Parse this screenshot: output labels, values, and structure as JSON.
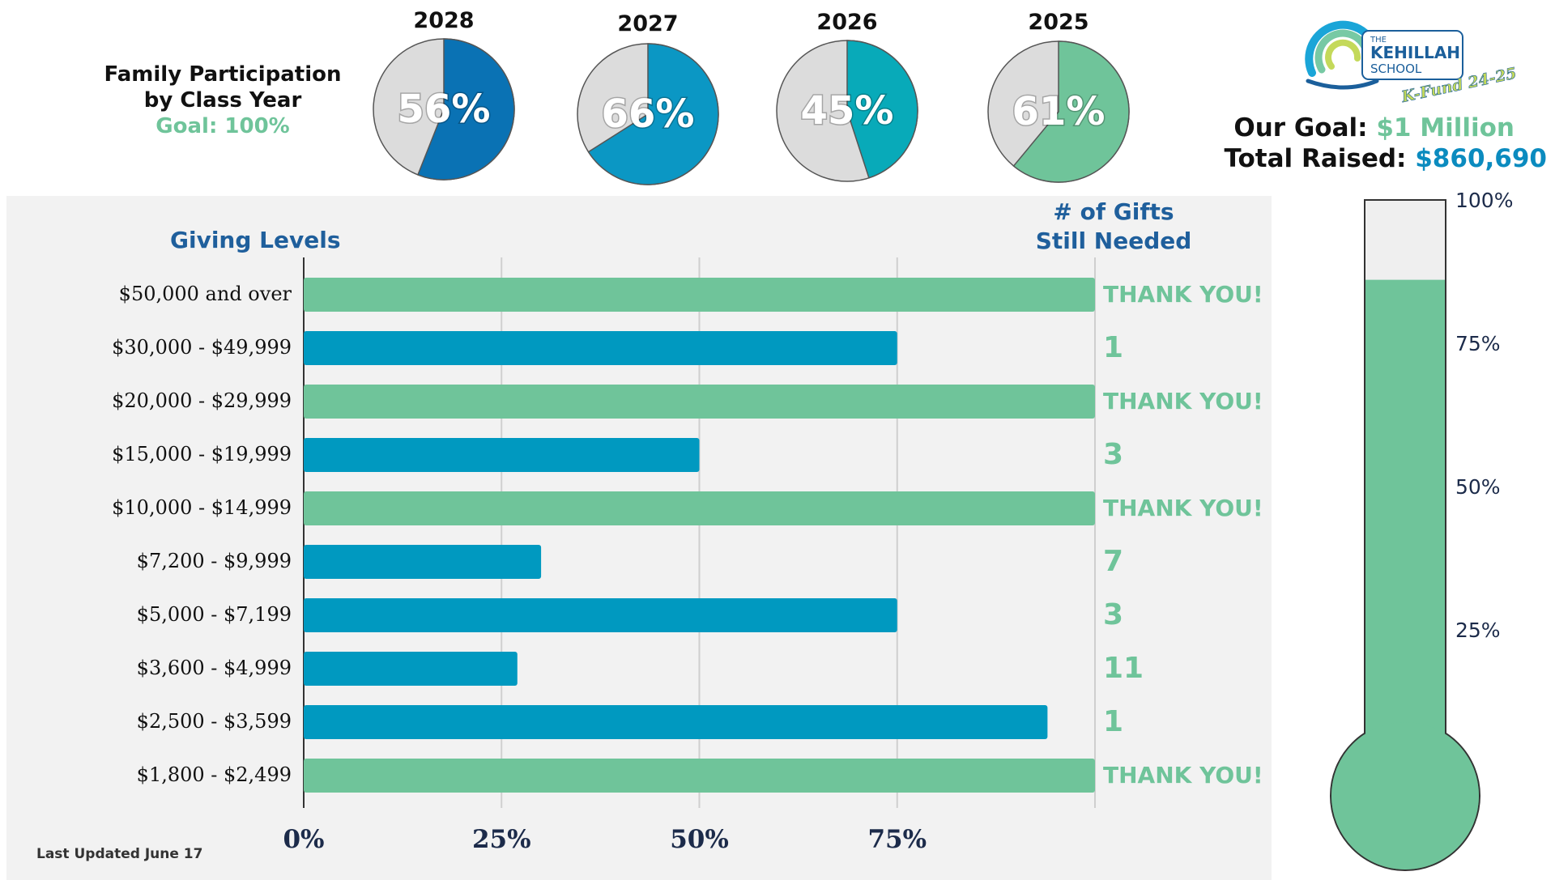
{
  "header": {
    "family_title_line1": "Family Participation",
    "family_title_line2": "by Class Year",
    "family_goal": "Goal: 100%"
  },
  "pies": [
    {
      "year": "2028",
      "percent": 56,
      "label": "56%",
      "color": "#0a72b4"
    },
    {
      "year": "2027",
      "percent": 66,
      "label": "66%",
      "color": "#0b97c4"
    },
    {
      "year": "2026",
      "percent": 45,
      "label": "45%",
      "color": "#08aab9"
    },
    {
      "year": "2025",
      "percent": 61,
      "label": "61%",
      "color": "#6fc49a"
    }
  ],
  "logo": {
    "the": "THE",
    "name": "KEHILLAH",
    "school": "SCHOOL",
    "tagline": "K-Fund 24-25"
  },
  "goal": {
    "goal_label": "Our Goal:",
    "goal_value": "$1 Million",
    "raised_label": "Total Raised:",
    "raised_value": "$860,690"
  },
  "giving": {
    "title": "Giving Levels",
    "gifts_title_line1": "# of Gifts",
    "gifts_title_line2": "Still Needed",
    "updated": "Last Updated June 17"
  },
  "chart_data": [
    {
      "type": "bar",
      "orientation": "horizontal",
      "title": "",
      "xlabel": "",
      "ylabel": "Giving Levels",
      "xlim": [
        0,
        100
      ],
      "x_ticks": [
        "0%",
        "25%",
        "50%",
        "75%"
      ],
      "categories": [
        "$50,000 and over",
        "$30,000 - $49,999",
        "$20,000 - $29,999",
        "$15,000 - $19,999",
        "$10,000 - $14,999",
        "$7,200 - $9,999",
        "$5,000 - $7,199",
        "$3,600 - $4,999",
        "$2,500 - $3,599",
        "$1,800 - $2,499"
      ],
      "values": [
        100,
        75,
        100,
        50,
        100,
        30,
        75,
        27,
        94,
        100
      ],
      "gifts_needed": [
        "THANK YOU!",
        "1",
        "THANK YOU!",
        "3",
        "THANK YOU!",
        "7",
        "3",
        "11",
        "1",
        "THANK YOU!"
      ],
      "colors": {
        "complete": "#6fc49a",
        "in_progress": "#0099c0"
      },
      "grid": true
    },
    {
      "type": "bar",
      "subtype": "thermometer",
      "title": "Total Raised",
      "goal": 1000000,
      "value": 860690,
      "percent": 86.07,
      "y_ticks": [
        "100%",
        "75%",
        "50%",
        "25%"
      ],
      "colors": {
        "fill": "#6fc49a",
        "empty": "#efefef"
      }
    },
    {
      "type": "pie",
      "title": "Family Participation by Class Year",
      "categories": [
        "2028",
        "2027",
        "2026",
        "2025"
      ],
      "values": [
        56,
        66,
        45,
        61
      ]
    }
  ]
}
